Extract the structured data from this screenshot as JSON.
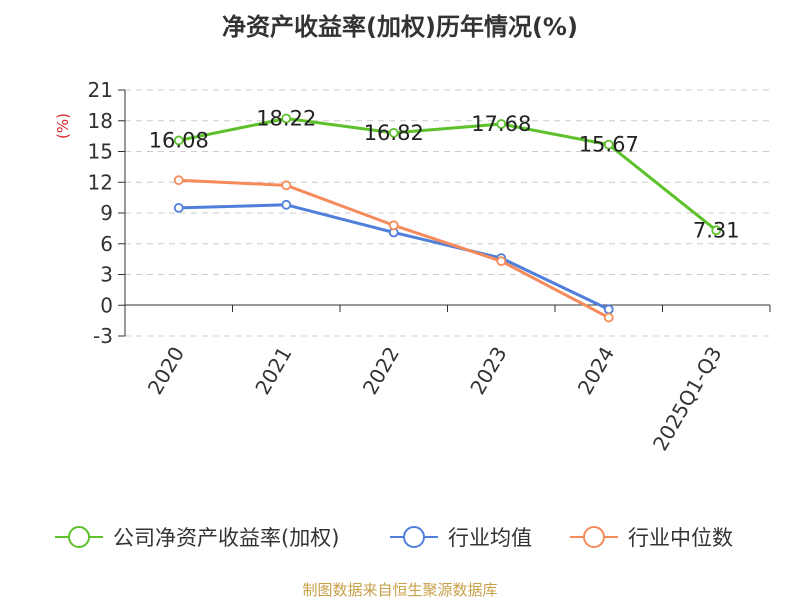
{
  "chart_data": {
    "type": "line",
    "title": "净资产收益率(加权)历年情况(%)",
    "ylabel": "(%)",
    "xlabel": "",
    "categories": [
      "2020",
      "2021",
      "2022",
      "2023",
      "2024",
      "2025Q1-Q3"
    ],
    "y_ticks": [
      "21",
      "18",
      "15",
      "12",
      "9",
      "6",
      "3",
      "0",
      "-3"
    ],
    "ylim": [
      -3,
      21
    ],
    "grid": true,
    "series": [
      {
        "name": "公司净资产收益率(加权)",
        "color": "#5cc12a",
        "values": [
          16.08,
          18.22,
          16.82,
          17.68,
          15.67,
          7.31
        ],
        "labels": [
          "16.08",
          "18.22",
          "16.82",
          "17.68",
          "15.67",
          "7.31"
        ]
      },
      {
        "name": "行业均值",
        "color": "#4f7fdb",
        "values": [
          9.5,
          9.8,
          7.1,
          4.6,
          -0.4,
          null
        ]
      },
      {
        "name": "行业中位数",
        "color": "#f58b5a",
        "values": [
          12.2,
          11.7,
          7.8,
          4.3,
          -1.2,
          null
        ]
      }
    ],
    "legend_position": "bottom"
  },
  "footer": {
    "source": "制图数据来自恒生聚源数据库",
    "source_color": "#c8a04a"
  },
  "colors": {
    "axis": "#333333",
    "grid": "#cccccc",
    "unit_label": "#d9262b"
  }
}
